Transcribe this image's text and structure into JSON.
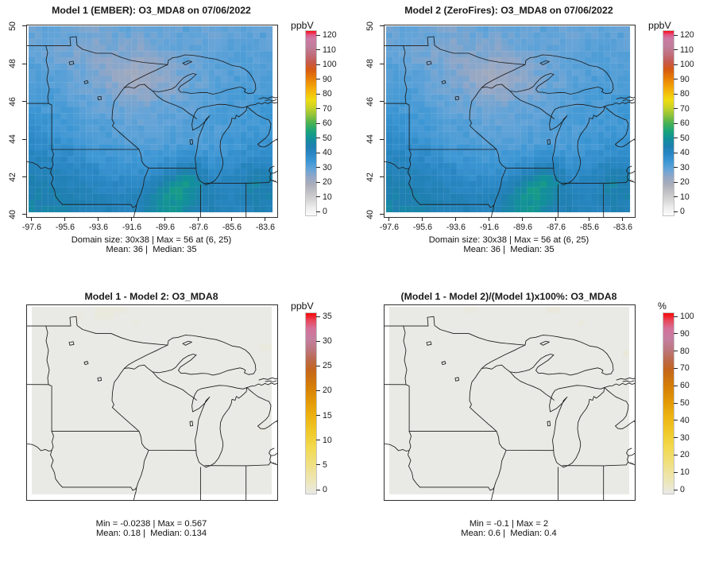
{
  "figure": {
    "background": "#ffffff",
    "kind": "model-comparison-spatial-plots"
  },
  "scales": {
    "conc": {
      "stops": [
        [
          0,
          "#FBFBFB"
        ],
        [
          0.042,
          "#EDEDED"
        ],
        [
          0.083,
          "#D6D6D6"
        ],
        [
          0.125,
          "#C2C2C6"
        ],
        [
          0.167,
          "#ABADBA"
        ],
        [
          0.208,
          "#93A7C6"
        ],
        [
          0.25,
          "#64A4D8"
        ],
        [
          0.292,
          "#3D97D4"
        ],
        [
          0.333,
          "#2A87C4"
        ],
        [
          0.375,
          "#1F7FB0"
        ],
        [
          0.417,
          "#12909A"
        ],
        [
          0.458,
          "#1CA47A"
        ],
        [
          0.5,
          "#48B253"
        ],
        [
          0.542,
          "#8EC23B"
        ],
        [
          0.583,
          "#C6D229"
        ],
        [
          0.625,
          "#EFDC12"
        ],
        [
          0.667,
          "#F4BC0C"
        ],
        [
          0.708,
          "#F09B08"
        ],
        [
          0.75,
          "#E57908"
        ],
        [
          0.792,
          "#D55A14"
        ],
        [
          0.833,
          "#C55B52"
        ],
        [
          0.875,
          "#C06F7E"
        ],
        [
          0.917,
          "#BF7E9B"
        ],
        [
          0.958,
          "#CC7AA4"
        ],
        [
          0.98,
          "#E05585"
        ],
        [
          1,
          "#FA0A10"
        ]
      ]
    },
    "diff": {
      "stops": [
        [
          0,
          "#E9E9E8"
        ],
        [
          0.029,
          "#EBE8D2"
        ],
        [
          0.057,
          "#ECE7C0"
        ],
        [
          0.114,
          "#EEE3A0"
        ],
        [
          0.171,
          "#F0DF7E"
        ],
        [
          0.257,
          "#F2D94E"
        ],
        [
          0.343,
          "#F0C92A"
        ],
        [
          0.429,
          "#ECB312"
        ],
        [
          0.514,
          "#E29708"
        ],
        [
          0.6,
          "#D47C08"
        ],
        [
          0.686,
          "#C4661E"
        ],
        [
          0.743,
          "#BB6A4E"
        ],
        [
          0.8,
          "#BC7780"
        ],
        [
          0.857,
          "#C47EA0"
        ],
        [
          0.914,
          "#D4719A"
        ],
        [
          0.957,
          "#E84A5F"
        ],
        [
          1,
          "#F50707"
        ]
      ]
    }
  },
  "panels": [
    {
      "id": "model1",
      "title": "Model 1 (EMBER): O3_MDA8 on 07/06/2022",
      "annotation_line1": "Domain size: 30x38 | Max = 56 at (6, 25)",
      "annotation_line2": "Mean: 36 |  Median: 35",
      "x_ticks": [
        "-97.6",
        "-95.6",
        "-93.6",
        "-91.6",
        "-89.6",
        "-87.6",
        "-85.6",
        "-83.6"
      ],
      "y_ticks": [
        "50",
        "48",
        "46",
        "44",
        "42",
        "40"
      ],
      "colorbar": {
        "label": "ppbV",
        "min": 0,
        "max": 120,
        "ticks": [
          0,
          10,
          20,
          30,
          40,
          50,
          60,
          70,
          80,
          90,
          100,
          110,
          120
        ],
        "scale": "conc"
      }
    },
    {
      "id": "model2",
      "title": "Model 2 (ZeroFires): O3_MDA8 on 07/06/2022",
      "annotation_line1": "Domain size: 30x38 | Max = 56 at (6, 25)",
      "annotation_line2": "Mean: 36 |  Median: 35",
      "x_ticks": [
        "-97.6",
        "-95.6",
        "-93.6",
        "-91.6",
        "-89.6",
        "-87.6",
        "-85.6",
        "-83.6"
      ],
      "y_ticks": [
        "50",
        "48",
        "46",
        "44",
        "42",
        "40"
      ],
      "colorbar": {
        "label": "ppbV",
        "min": 0,
        "max": 120,
        "ticks": [
          0,
          10,
          20,
          30,
          40,
          50,
          60,
          70,
          80,
          90,
          100,
          110,
          120
        ],
        "scale": "conc"
      }
    },
    {
      "id": "diff",
      "title": "Model 1 - Model 2: O3_MDA8",
      "annotation_line1": "Min = -0.0238 | Max = 0.567",
      "annotation_line2": "Mean: 0.18 |  Median: 0.134",
      "x_ticks": [],
      "y_ticks": [],
      "colorbar": {
        "label": "ppbV",
        "min": 0,
        "max": 35,
        "ticks": [
          0,
          5,
          10,
          15,
          20,
          25,
          30,
          35
        ],
        "scale": "diff"
      }
    },
    {
      "id": "pctdiff",
      "title": "(Model 1 - Model 2)/(Model 1)x100%: O3_MDA8",
      "annotation_line1": "Min = -0.1 | Max = 2",
      "annotation_line2": "Mean: 0.6 |  Median: 0.4",
      "x_ticks": [],
      "y_ticks": [],
      "colorbar": {
        "label": "%",
        "min": 0,
        "max": 100,
        "ticks": [
          0,
          10,
          20,
          30,
          40,
          50,
          60,
          70,
          80,
          90,
          100
        ],
        "scale": "diff"
      }
    }
  ],
  "chart_data": [
    {
      "type": "heatmap",
      "title": "Model 1 (EMBER): O3_MDA8 on 07/06/2022",
      "units": "ppbV",
      "extent": {
        "lon": [
          -97.93,
          -82.93
        ],
        "lat": [
          39.92,
          50.08
        ]
      },
      "x_tick_values": [
        -97.6,
        -95.6,
        -93.6,
        -91.6,
        -89.6,
        -87.6,
        -85.6,
        -83.6
      ],
      "y_tick_values": [
        50,
        48,
        46,
        44,
        42,
        40
      ],
      "domain_size": "30x38",
      "max": 56,
      "max_at": "(6, 25)",
      "mean": 36,
      "median": 35,
      "legend_range": [
        0,
        120
      ],
      "grid_cols": 19,
      "grid_rows": 15,
      "values": [
        [
          30,
          30,
          29,
          29,
          28,
          28,
          29,
          30,
          29,
          29,
          30,
          30,
          31,
          30,
          30,
          30,
          31,
          31,
          31
        ],
        [
          30,
          29,
          29,
          28,
          27,
          27,
          28,
          28,
          27,
          28,
          29,
          30,
          30,
          30,
          30,
          31,
          31,
          32,
          31
        ],
        [
          31,
          30,
          29,
          28,
          27,
          26,
          26,
          27,
          25,
          26,
          28,
          29,
          30,
          30,
          31,
          31,
          32,
          32,
          32
        ],
        [
          32,
          31,
          30,
          29,
          28,
          27,
          25,
          23,
          23,
          24,
          26,
          28,
          29,
          30,
          31,
          32,
          32,
          32,
          33
        ],
        [
          33,
          32,
          31,
          30,
          29,
          28,
          26,
          24,
          22,
          24,
          26,
          27,
          29,
          30,
          31,
          32,
          33,
          33,
          33
        ],
        [
          34,
          33,
          32,
          31,
          30,
          29,
          28,
          26,
          25,
          26,
          27,
          28,
          30,
          31,
          32,
          32,
          33,
          33,
          34
        ],
        [
          35,
          34,
          33,
          32,
          31,
          30,
          30,
          29,
          28,
          29,
          30,
          30,
          31,
          31,
          32,
          33,
          33,
          34,
          34
        ],
        [
          36,
          35,
          34,
          33,
          32,
          31,
          31,
          30,
          30,
          30,
          31,
          31,
          31,
          32,
          33,
          33,
          34,
          34,
          35
        ],
        [
          38,
          36,
          35,
          34,
          33,
          33,
          32,
          31,
          31,
          31,
          31,
          32,
          32,
          32,
          33,
          34,
          34,
          35,
          35
        ],
        [
          39,
          38,
          37,
          36,
          34,
          34,
          33,
          33,
          32,
          32,
          32,
          33,
          33,
          33,
          34,
          35,
          35,
          36,
          36
        ],
        [
          41,
          40,
          39,
          38,
          36,
          35,
          35,
          34,
          34,
          34,
          35,
          36,
          37,
          36,
          35,
          36,
          37,
          38,
          38
        ],
        [
          43,
          42,
          41,
          40,
          39,
          38,
          37,
          36,
          36,
          37,
          39,
          41,
          44,
          42,
          38,
          39,
          40,
          44,
          42
        ],
        [
          45,
          44,
          43,
          42,
          41,
          40,
          39,
          39,
          40,
          42,
          45,
          48,
          52,
          46,
          41,
          41,
          42,
          48,
          45
        ],
        [
          46,
          45,
          45,
          44,
          43,
          42,
          41,
          41,
          42,
          45,
          50,
          54,
          50,
          46,
          42,
          41,
          42,
          46,
          45
        ],
        [
          47,
          46,
          46,
          45,
          44,
          43,
          43,
          42,
          44,
          47,
          52,
          50,
          47,
          45,
          43,
          42,
          42,
          44,
          44
        ]
      ]
    },
    {
      "type": "heatmap",
      "title": "Model 2 (ZeroFires): O3_MDA8 on 07/06/2022",
      "units": "ppbV",
      "extent": {
        "lon": [
          -97.93,
          -82.93
        ],
        "lat": [
          39.92,
          50.08
        ]
      },
      "domain_size": "30x38",
      "max": 56,
      "max_at": "(6, 25)",
      "mean": 36,
      "median": 35,
      "legend_range": [
        0,
        120
      ],
      "values_same_as": 0
    },
    {
      "type": "heatmap",
      "title": "Model 1 - Model 2: O3_MDA8",
      "units": "ppbV",
      "extent": {
        "lon": [
          -97.93,
          -82.93
        ],
        "lat": [
          39.92,
          50.08
        ]
      },
      "min": -0.0238,
      "max": 0.567,
      "mean": 0.18,
      "median": 0.134,
      "legend_range": [
        0,
        35
      ],
      "base_value": 0.15,
      "patches": [
        {
          "c": 10,
          "r": 0,
          "w": 3,
          "h": 2,
          "v": 0.5
        },
        {
          "c": 13,
          "r": 0,
          "w": 2,
          "h": 1,
          "v": 0.45
        },
        {
          "c": 7,
          "r": 1,
          "w": 1,
          "h": 1,
          "v": 0.4
        },
        {
          "c": 16,
          "r": 2,
          "w": 1,
          "h": 1,
          "v": 0.35
        },
        {
          "c": 36,
          "r": 6,
          "w": 2,
          "h": 1,
          "v": 0.5
        },
        {
          "c": 36,
          "r": 19,
          "w": 1,
          "h": 1,
          "v": 0.35
        }
      ]
    },
    {
      "type": "heatmap",
      "title": "(Model 1 - Model 2)/(Model 1)x100%: O3_MDA8",
      "units": "%",
      "extent": {
        "lon": [
          -97.93,
          -82.93
        ],
        "lat": [
          39.92,
          50.08
        ]
      },
      "min": -0.1,
      "max": 2,
      "mean": 0.6,
      "median": 0.4,
      "legend_range": [
        0,
        100
      ],
      "base_value": 0.4,
      "patches": [
        {
          "c": 12,
          "r": 0,
          "w": 2,
          "h": 1,
          "v": 1.2
        },
        {
          "c": 25,
          "r": 0,
          "w": 2,
          "h": 1,
          "v": 1.6
        },
        {
          "c": 30,
          "r": 2,
          "w": 1,
          "h": 1,
          "v": 1.4
        },
        {
          "c": 37,
          "r": 7,
          "w": 1,
          "h": 1,
          "v": 1.8
        }
      ]
    }
  ]
}
